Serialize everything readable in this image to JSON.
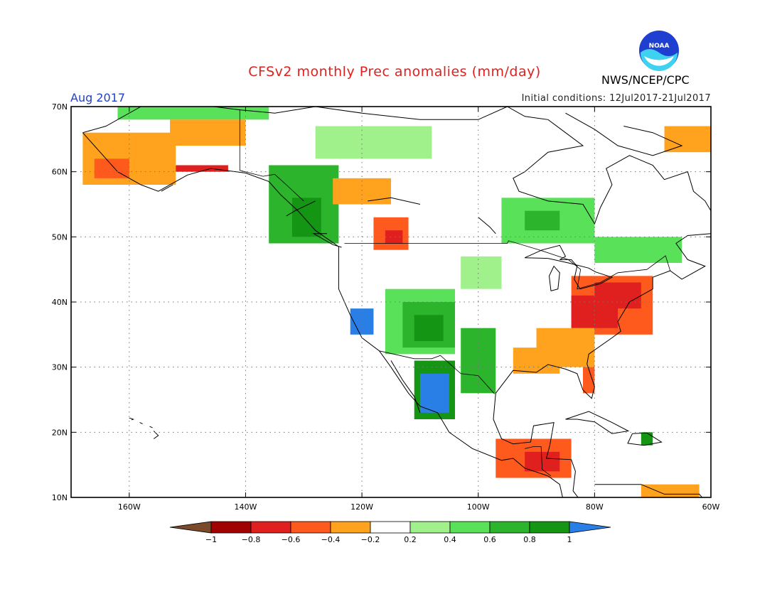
{
  "header": {
    "title": "CFSv2 monthly Prec anomalies (mm/day)",
    "agency": "NWS/NCEP/CPC",
    "period": "Aug 2017",
    "initial_conditions": "Initial conditions: 12Jul2017-21Jul2017",
    "logo_text": "NOAA"
  },
  "map": {
    "lon_range": [
      -170,
      -60
    ],
    "lat_range": [
      10,
      70
    ],
    "lat_ticks": [
      {
        "value": 70,
        "label": "70N"
      },
      {
        "value": 60,
        "label": "60N"
      },
      {
        "value": 50,
        "label": "50N"
      },
      {
        "value": 40,
        "label": "40N"
      },
      {
        "value": 30,
        "label": "30N"
      },
      {
        "value": 20,
        "label": "20N"
      },
      {
        "value": 10,
        "label": "10N"
      }
    ],
    "lon_ticks": [
      {
        "value": -160,
        "label": "160W"
      },
      {
        "value": -140,
        "label": "140W"
      },
      {
        "value": -120,
        "label": "120W"
      },
      {
        "value": -100,
        "label": "100W"
      },
      {
        "value": -80,
        "label": "80W"
      },
      {
        "value": -60,
        "label": "60W"
      }
    ],
    "grid": "dotted",
    "anomaly_regions": [
      {
        "region": "Alaska west",
        "lon": [
          -168,
          -152
        ],
        "lat": [
          58,
          66
        ],
        "class": "-0.4"
      },
      {
        "region": "Alaska southwest",
        "lon": [
          -166,
          -160
        ],
        "lat": [
          59,
          62
        ],
        "class": "-0.6"
      },
      {
        "region": "Alaska north coast",
        "lon": [
          -162,
          -136
        ],
        "lat": [
          68,
          70
        ],
        "class": "0.4"
      },
      {
        "region": "Yukon interior",
        "lon": [
          -153,
          -140
        ],
        "lat": [
          64,
          68
        ],
        "class": "-0.4"
      },
      {
        "region": "Alaska south coast",
        "lon": [
          -152,
          -143
        ],
        "lat": [
          60,
          61
        ],
        "class": "-0.8"
      },
      {
        "region": "British Columbia coast",
        "lon": [
          -136,
          -124
        ],
        "lat": [
          49,
          61
        ],
        "class": "0.6"
      },
      {
        "region": "BC coast core",
        "lon": [
          -132,
          -127
        ],
        "lat": [
          50,
          56
        ],
        "class": "0.8"
      },
      {
        "region": "NW Canada",
        "lon": [
          -125,
          -115
        ],
        "lat": [
          55,
          59
        ],
        "class": "-0.4"
      },
      {
        "region": "Alberta",
        "lon": [
          -118,
          -112
        ],
        "lat": [
          48,
          53
        ],
        "class": "-0.6"
      },
      {
        "region": "Alberta core",
        "lon": [
          -116,
          -113
        ],
        "lat": [
          49,
          51
        ],
        "class": "-0.8"
      },
      {
        "region": "Northwest Territories",
        "lon": [
          -128,
          -108
        ],
        "lat": [
          62,
          67
        ],
        "class": "0.2"
      },
      {
        "region": "Ontario north",
        "lon": [
          -96,
          -80
        ],
        "lat": [
          49,
          56
        ],
        "class": "0.4"
      },
      {
        "region": "Ontario core",
        "lon": [
          -92,
          -86
        ],
        "lat": [
          51,
          54
        ],
        "class": "0.6"
      },
      {
        "region": "Southwest US",
        "lon": [
          -116,
          -104
        ],
        "lat": [
          32,
          42
        ],
        "class": "0.4"
      },
      {
        "region": "Colorado Plateau",
        "lon": [
          -113,
          -104
        ],
        "lat": [
          33,
          40
        ],
        "class": "0.6"
      },
      {
        "region": "Four Corners",
        "lon": [
          -111,
          -106
        ],
        "lat": [
          34,
          38
        ],
        "class": "0.8"
      },
      {
        "region": "California coast",
        "lon": [
          -122,
          -118
        ],
        "lat": [
          35,
          39
        ],
        "class": "1"
      },
      {
        "region": "West Mexico",
        "lon": [
          -111,
          -104
        ],
        "lat": [
          22,
          31
        ],
        "class": "0.8"
      },
      {
        "region": "Sierra Madre",
        "lon": [
          -110,
          -105
        ],
        "lat": [
          23,
          29
        ],
        "class": "1"
      },
      {
        "region": "Great Lakes / Northeast US",
        "lon": [
          -84,
          -70
        ],
        "lat": [
          35,
          44
        ],
        "class": "-0.6"
      },
      {
        "region": "Northeast core",
        "lon": [
          -80,
          -72
        ],
        "lat": [
          39,
          43
        ],
        "class": "-0.8"
      },
      {
        "region": "Mid-Atlantic",
        "lon": [
          -84,
          -76
        ],
        "lat": [
          36,
          41
        ],
        "class": "-0.8"
      },
      {
        "region": "Southeast US",
        "lon": [
          -90,
          -80
        ],
        "lat": [
          30,
          36
        ],
        "class": "-0.4"
      },
      {
        "region": "Florida",
        "lon": [
          -82,
          -80
        ],
        "lat": [
          26,
          30
        ],
        "class": "-0.6"
      },
      {
        "region": "Gulf coast",
        "lon": [
          -94,
          -86
        ],
        "lat": [
          29,
          33
        ],
        "class": "-0.4"
      },
      {
        "region": "Central America",
        "lon": [
          -97,
          -84
        ],
        "lat": [
          13,
          19
        ],
        "class": "-0.6"
      },
      {
        "region": "Central America core",
        "lon": [
          -92,
          -86
        ],
        "lat": [
          14,
          17
        ],
        "class": "-0.8"
      },
      {
        "region": "Hispaniola",
        "lon": [
          -72,
          -70
        ],
        "lat": [
          18,
          20
        ],
        "class": "0.8"
      },
      {
        "region": "Venezuela coast",
        "lon": [
          -72,
          -62
        ],
        "lat": [
          10,
          12
        ],
        "class": "-0.4"
      },
      {
        "region": "Central Plains",
        "lon": [
          -103,
          -96
        ],
        "lat": [
          42,
          47
        ],
        "class": "0.2"
      },
      {
        "region": "Southern Plains",
        "lon": [
          -103,
          -97
        ],
        "lat": [
          26,
          36
        ],
        "class": "0.6"
      },
      {
        "region": "Quebec",
        "lon": [
          -80,
          -65
        ],
        "lat": [
          46,
          50
        ],
        "class": "0.4"
      },
      {
        "region": "Labrador",
        "lon": [
          -68,
          -60
        ],
        "lat": [
          63,
          67
        ],
        "class": "-0.4"
      }
    ]
  },
  "colorbar": {
    "labels": [
      "−1",
      "−0.8",
      "−0.6",
      "−0.4",
      "−0.2",
      "0.2",
      "0.4",
      "0.6",
      "0.8",
      "1"
    ],
    "colors": {
      "lt_-1": "#7a4a2a",
      "-1_-0.8": "#a00000",
      "-0.8_-0.6": "#e0201e",
      "-0.6_-0.4": "#ff5a1e",
      "-0.4_-0.2": "#ffa31e",
      "-0.2_0.2": "#ffffff",
      "0.2_0.4": "#a0f08c",
      "0.4_0.6": "#5ae15a",
      "0.6_0.8": "#2db42d",
      "0.8_1": "#149614",
      "gt_1": "#2a7fe6"
    }
  }
}
